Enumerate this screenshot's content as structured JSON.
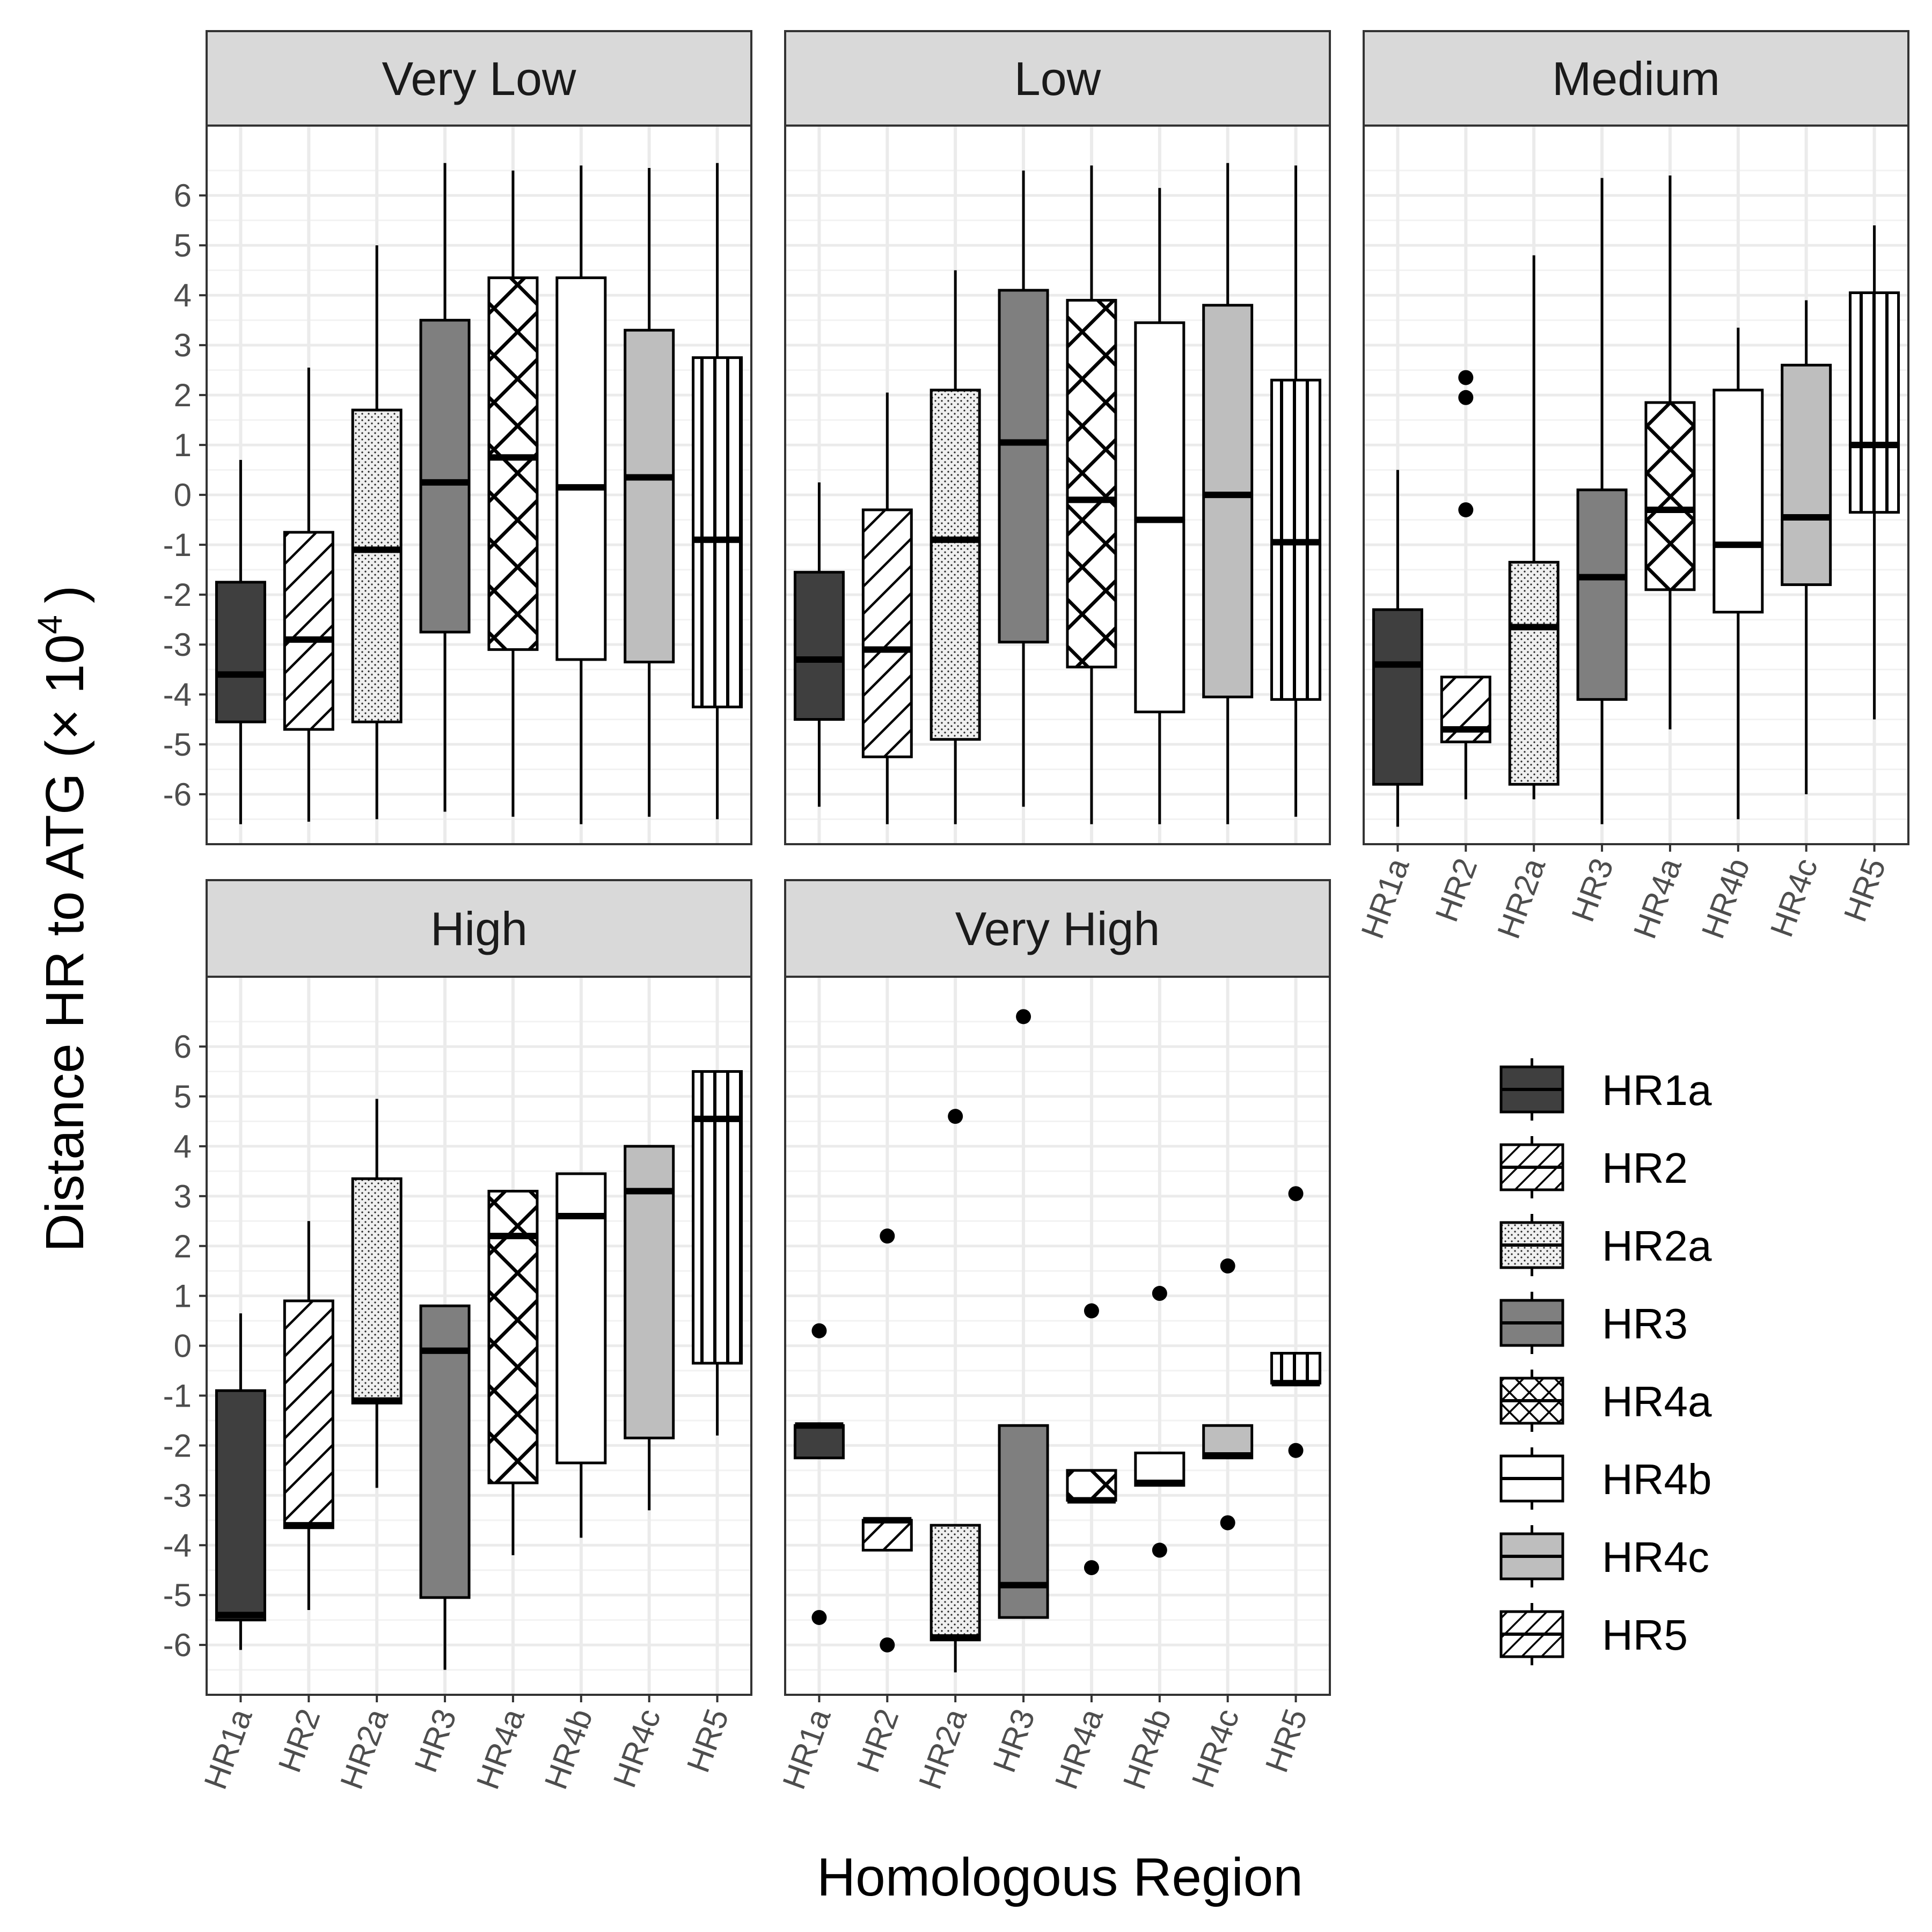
{
  "chart_data": {
    "type": "boxplot",
    "xlabel": "Homologous Region",
    "ylabel": "Distance HR to ATG (× 10",
    "ylabel_exponent": "4",
    "ylabel_close": ")",
    "ylim": [
      -7,
      7.4
    ],
    "yticks": [
      -6,
      -5,
      -4,
      -3,
      -2,
      -1,
      0,
      1,
      2,
      3,
      4,
      5,
      6
    ],
    "categories": [
      "HR1a",
      "HR2",
      "HR2a",
      "HR3",
      "HR4a",
      "HR4b",
      "HR4c",
      "HR5"
    ],
    "fills": {
      "HR1a": "#3f3f3f",
      "HR2": "#ffffff",
      "HR2a": "#efefef",
      "HR3": "#7f7f7f",
      "HR4a": "#ffffff",
      "HR4b": "#ffffff",
      "HR4c": "#bebebe",
      "HR5": "#ffffff"
    },
    "patterns": {
      "HR1a": "none",
      "HR2": "diagonal",
      "HR2a": "dots",
      "HR3": "none",
      "HR4a": "crosshatch",
      "HR4b": "none",
      "HR4c": "none",
      "HR5": "vertical"
    },
    "panels": [
      {
        "title": "Very Low",
        "boxes": [
          {
            "lo": -6.6,
            "q1": -4.55,
            "med": -3.6,
            "q3": -1.75,
            "hi": 0.7,
            "out": []
          },
          {
            "lo": -6.55,
            "q1": -4.7,
            "med": -2.9,
            "q3": -0.75,
            "hi": 2.55,
            "out": []
          },
          {
            "lo": -6.5,
            "q1": -4.55,
            "med": -1.1,
            "q3": 1.7,
            "hi": 5.0,
            "out": []
          },
          {
            "lo": -6.35,
            "q1": -2.75,
            "med": 0.25,
            "q3": 3.5,
            "hi": 6.65,
            "out": []
          },
          {
            "lo": -6.45,
            "q1": -3.1,
            "med": 0.75,
            "q3": 4.35,
            "hi": 6.5,
            "out": []
          },
          {
            "lo": -6.6,
            "q1": -3.3,
            "med": 0.15,
            "q3": 4.35,
            "hi": 6.6,
            "out": []
          },
          {
            "lo": -6.45,
            "q1": -3.35,
            "med": 0.35,
            "q3": 3.3,
            "hi": 6.55,
            "out": []
          },
          {
            "lo": -6.5,
            "q1": -4.25,
            "med": -0.9,
            "q3": 2.75,
            "hi": 6.65,
            "out": []
          }
        ]
      },
      {
        "title": "Low",
        "boxes": [
          {
            "lo": -6.25,
            "q1": -4.5,
            "med": -3.3,
            "q3": -1.55,
            "hi": 0.25,
            "out": []
          },
          {
            "lo": -6.6,
            "q1": -5.25,
            "med": -3.1,
            "q3": -0.3,
            "hi": 2.05,
            "out": []
          },
          {
            "lo": -6.6,
            "q1": -4.9,
            "med": -0.9,
            "q3": 2.1,
            "hi": 4.5,
            "out": []
          },
          {
            "lo": -6.25,
            "q1": -2.95,
            "med": 1.05,
            "q3": 4.1,
            "hi": 6.5,
            "out": []
          },
          {
            "lo": -6.6,
            "q1": -3.45,
            "med": -0.1,
            "q3": 3.9,
            "hi": 6.6,
            "out": []
          },
          {
            "lo": -6.6,
            "q1": -4.35,
            "med": -0.5,
            "q3": 3.45,
            "hi": 6.15,
            "out": []
          },
          {
            "lo": -6.6,
            "q1": -4.05,
            "med": 0.0,
            "q3": 3.8,
            "hi": 6.65,
            "out": []
          },
          {
            "lo": -6.45,
            "q1": -4.1,
            "med": -0.95,
            "q3": 2.3,
            "hi": 6.6,
            "out": []
          }
        ]
      },
      {
        "title": "Medium",
        "boxes": [
          {
            "lo": -6.65,
            "q1": -5.8,
            "med": -3.4,
            "q3": -2.3,
            "hi": 0.5,
            "out": []
          },
          {
            "lo": -6.1,
            "q1": -4.95,
            "med": -4.7,
            "q3": -3.65,
            "hi": -3.65,
            "out": [
              2.35,
              1.95,
              -0.3
            ]
          },
          {
            "lo": -6.1,
            "q1": -5.8,
            "med": -2.65,
            "q3": -1.35,
            "hi": 4.8,
            "out": []
          },
          {
            "lo": -6.6,
            "q1": -4.1,
            "med": -1.65,
            "q3": 0.1,
            "hi": 6.35,
            "out": []
          },
          {
            "lo": -4.7,
            "q1": -1.9,
            "med": -0.3,
            "q3": 1.85,
            "hi": 6.4,
            "out": []
          },
          {
            "lo": -6.5,
            "q1": -2.35,
            "med": -1.0,
            "q3": 2.1,
            "hi": 3.35,
            "out": []
          },
          {
            "lo": -6.0,
            "q1": -1.8,
            "med": -0.45,
            "q3": 2.6,
            "hi": 3.9,
            "out": []
          },
          {
            "lo": -4.5,
            "q1": -0.35,
            "med": 1.0,
            "q3": 4.05,
            "hi": 5.4,
            "out": []
          }
        ]
      },
      {
        "title": "High",
        "boxes": [
          {
            "lo": -6.1,
            "q1": -5.5,
            "med": -5.4,
            "q3": -0.9,
            "hi": 0.65,
            "out": []
          },
          {
            "lo": -5.3,
            "q1": -3.65,
            "med": -3.6,
            "q3": 0.9,
            "hi": 2.5,
            "out": []
          },
          {
            "lo": -2.85,
            "q1": -1.15,
            "med": -1.1,
            "q3": 3.35,
            "hi": 4.95,
            "out": []
          },
          {
            "lo": -6.5,
            "q1": -5.05,
            "med": -0.1,
            "q3": 0.8,
            "hi": 0.8,
            "out": []
          },
          {
            "lo": -4.2,
            "q1": -2.75,
            "med": 2.2,
            "q3": 3.1,
            "hi": 3.1,
            "out": []
          },
          {
            "lo": -3.85,
            "q1": -2.35,
            "med": 2.6,
            "q3": 3.45,
            "hi": 3.45,
            "out": []
          },
          {
            "lo": -3.3,
            "q1": -1.85,
            "med": 3.1,
            "q3": 4.0,
            "hi": 4.0,
            "out": []
          },
          {
            "lo": -1.8,
            "q1": -0.35,
            "med": 4.55,
            "q3": 5.5,
            "hi": 5.5,
            "out": []
          }
        ]
      },
      {
        "title": "Very High",
        "boxes": [
          {
            "lo": -2.25,
            "q1": -2.25,
            "med": -1.6,
            "q3": -1.6,
            "hi": -1.6,
            "out": [
              0.3,
              -5.45
            ]
          },
          {
            "lo": -4.1,
            "q1": -4.1,
            "med": -3.5,
            "q3": -3.5,
            "hi": -3.5,
            "out": [
              2.2,
              -6.0
            ]
          },
          {
            "lo": -6.55,
            "q1": -5.9,
            "med": -5.85,
            "q3": -3.6,
            "hi": -3.6,
            "out": [
              4.6
            ]
          },
          {
            "lo": -5.45,
            "q1": -5.45,
            "med": -4.8,
            "q3": -1.6,
            "hi": -1.6,
            "out": [
              6.6
            ]
          },
          {
            "lo": -3.1,
            "q1": -3.1,
            "med": -3.1,
            "q3": -2.5,
            "hi": -2.5,
            "out": [
              0.7,
              -4.45
            ]
          },
          {
            "lo": -2.8,
            "q1": -2.8,
            "med": -2.75,
            "q3": -2.15,
            "hi": -2.15,
            "out": [
              1.05,
              -4.1
            ]
          },
          {
            "lo": -2.25,
            "q1": -2.25,
            "med": -2.2,
            "q3": -1.6,
            "hi": -1.6,
            "out": [
              1.6,
              -3.55
            ]
          },
          {
            "lo": -0.75,
            "q1": -0.75,
            "med": -0.75,
            "q3": -0.15,
            "hi": -0.15,
            "out": [
              3.05,
              -2.1
            ]
          }
        ]
      }
    ],
    "legend": {
      "position": "bottom-right",
      "entries": [
        "HR1a",
        "HR2",
        "HR2a",
        "HR3",
        "HR4a",
        "HR4b",
        "HR4c",
        "HR5"
      ]
    }
  }
}
